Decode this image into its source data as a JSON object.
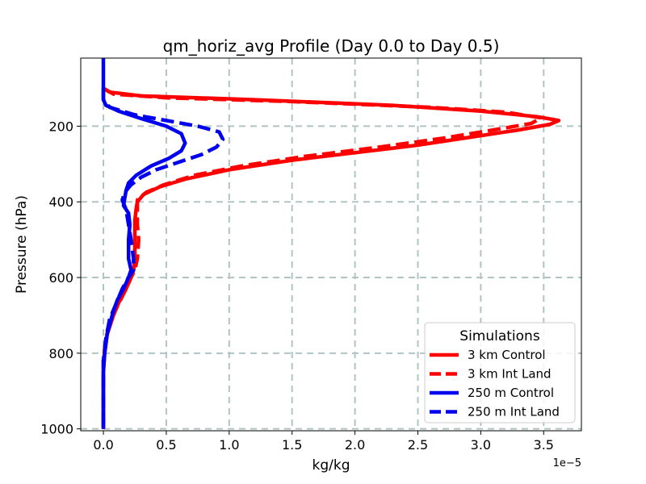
{
  "chart_data": {
    "type": "line",
    "title": "qm_horiz_avg Profile (Day 0.0 to Day 0.5)",
    "xlabel": "kg/kg",
    "ylabel": "Pressure (hPa)",
    "x_offset_label": "1e−5",
    "xlim": [
      -0.18,
      3.8
    ],
    "ylim": [
      1005,
      20
    ],
    "y_inverted": true,
    "grid": true,
    "x_ticks": [
      0.0,
      0.5,
      1.0,
      1.5,
      2.0,
      2.5,
      3.0,
      3.5
    ],
    "x_tick_labels": [
      "0.0",
      "0.5",
      "1.0",
      "1.5",
      "2.0",
      "2.5",
      "3.0",
      "3.5"
    ],
    "y_ticks": [
      200,
      400,
      600,
      800,
      1000
    ],
    "y_tick_labels": [
      "200",
      "400",
      "600",
      "800",
      "1000"
    ],
    "legend": {
      "title": "Simulations",
      "position": "lower right"
    },
    "series": [
      {
        "name": "3 km Control",
        "color": "#ff0000",
        "style": "solid",
        "points": [
          [
            0.0,
            100
          ],
          [
            0.05,
            110
          ],
          [
            0.3,
            120
          ],
          [
            1.2,
            130
          ],
          [
            2.3,
            145
          ],
          [
            3.0,
            160
          ],
          [
            3.45,
            175
          ],
          [
            3.62,
            185
          ],
          [
            3.55,
            195
          ],
          [
            3.3,
            210
          ],
          [
            2.9,
            230
          ],
          [
            2.5,
            250
          ],
          [
            2.0,
            270
          ],
          [
            1.5,
            290
          ],
          [
            1.0,
            315
          ],
          [
            0.65,
            340
          ],
          [
            0.45,
            360
          ],
          [
            0.32,
            380
          ],
          [
            0.27,
            400
          ],
          [
            0.26,
            420
          ],
          [
            0.25,
            450
          ],
          [
            0.25,
            500
          ],
          [
            0.25,
            550
          ],
          [
            0.24,
            580
          ],
          [
            0.22,
            600
          ],
          [
            0.18,
            630
          ],
          [
            0.13,
            660
          ],
          [
            0.08,
            700
          ],
          [
            0.03,
            750
          ],
          [
            0.01,
            800
          ],
          [
            0.0,
            850
          ],
          [
            0.0,
            900
          ],
          [
            0.0,
            1000
          ]
        ]
      },
      {
        "name": "3 km Int Land",
        "color": "#ff0000",
        "style": "dashed",
        "points": [
          [
            0.0,
            100
          ],
          [
            0.08,
            115
          ],
          [
            0.5,
            125
          ],
          [
            1.5,
            135
          ],
          [
            2.6,
            150
          ],
          [
            3.2,
            163
          ],
          [
            3.48,
            178
          ],
          [
            3.4,
            193
          ],
          [
            3.1,
            210
          ],
          [
            2.7,
            232
          ],
          [
            2.2,
            255
          ],
          [
            1.6,
            280
          ],
          [
            1.1,
            305
          ],
          [
            0.72,
            330
          ],
          [
            0.48,
            355
          ],
          [
            0.34,
            375
          ],
          [
            0.27,
            395
          ],
          [
            0.27,
            420
          ],
          [
            0.27,
            460
          ],
          [
            0.28,
            500
          ],
          [
            0.27,
            550
          ],
          [
            0.25,
            580
          ],
          [
            0.22,
            600
          ],
          [
            0.18,
            630
          ],
          [
            0.12,
            670
          ],
          [
            0.06,
            710
          ],
          [
            0.02,
            760
          ],
          [
            0.0,
            820
          ],
          [
            0.0,
            900
          ],
          [
            0.0,
            1000
          ]
        ]
      },
      {
        "name": "250 m Control",
        "color": "#0000ee",
        "style": "solid",
        "points": [
          [
            0.0,
            20
          ],
          [
            0.0,
            60
          ],
          [
            0.0,
            100
          ],
          [
            0.0,
            130
          ],
          [
            0.02,
            145
          ],
          [
            0.12,
            160
          ],
          [
            0.3,
            180
          ],
          [
            0.5,
            200
          ],
          [
            0.62,
            220
          ],
          [
            0.65,
            245
          ],
          [
            0.62,
            265
          ],
          [
            0.52,
            285
          ],
          [
            0.38,
            305
          ],
          [
            0.26,
            330
          ],
          [
            0.2,
            350
          ],
          [
            0.18,
            370
          ],
          [
            0.17,
            390
          ],
          [
            0.16,
            410
          ],
          [
            0.2,
            430
          ],
          [
            0.21,
            460
          ],
          [
            0.2,
            500
          ],
          [
            0.2,
            550
          ],
          [
            0.22,
            580
          ],
          [
            0.2,
            600
          ],
          [
            0.16,
            630
          ],
          [
            0.11,
            660
          ],
          [
            0.07,
            700
          ],
          [
            0.03,
            750
          ],
          [
            0.01,
            800
          ],
          [
            0.0,
            850
          ],
          [
            0.0,
            900
          ],
          [
            0.0,
            1000
          ]
        ]
      },
      {
        "name": "250 m Int Land",
        "color": "#0000ee",
        "style": "dashed",
        "points": [
          [
            0.0,
            100
          ],
          [
            0.0,
            130
          ],
          [
            0.05,
            150
          ],
          [
            0.25,
            170
          ],
          [
            0.5,
            185
          ],
          [
            0.75,
            200
          ],
          [
            0.92,
            215
          ],
          [
            0.95,
            235
          ],
          [
            0.9,
            255
          ],
          [
            0.78,
            275
          ],
          [
            0.6,
            295
          ],
          [
            0.42,
            315
          ],
          [
            0.3,
            335
          ],
          [
            0.22,
            355
          ],
          [
            0.17,
            375
          ],
          [
            0.15,
            395
          ],
          [
            0.18,
            420
          ],
          [
            0.2,
            460
          ],
          [
            0.22,
            500
          ],
          [
            0.24,
            550
          ],
          [
            0.24,
            580
          ],
          [
            0.2,
            600
          ],
          [
            0.15,
            630
          ],
          [
            0.1,
            670
          ],
          [
            0.05,
            710
          ],
          [
            0.02,
            760
          ],
          [
            0.0,
            820
          ],
          [
            0.0,
            900
          ],
          [
            0.0,
            1000
          ]
        ]
      }
    ]
  }
}
